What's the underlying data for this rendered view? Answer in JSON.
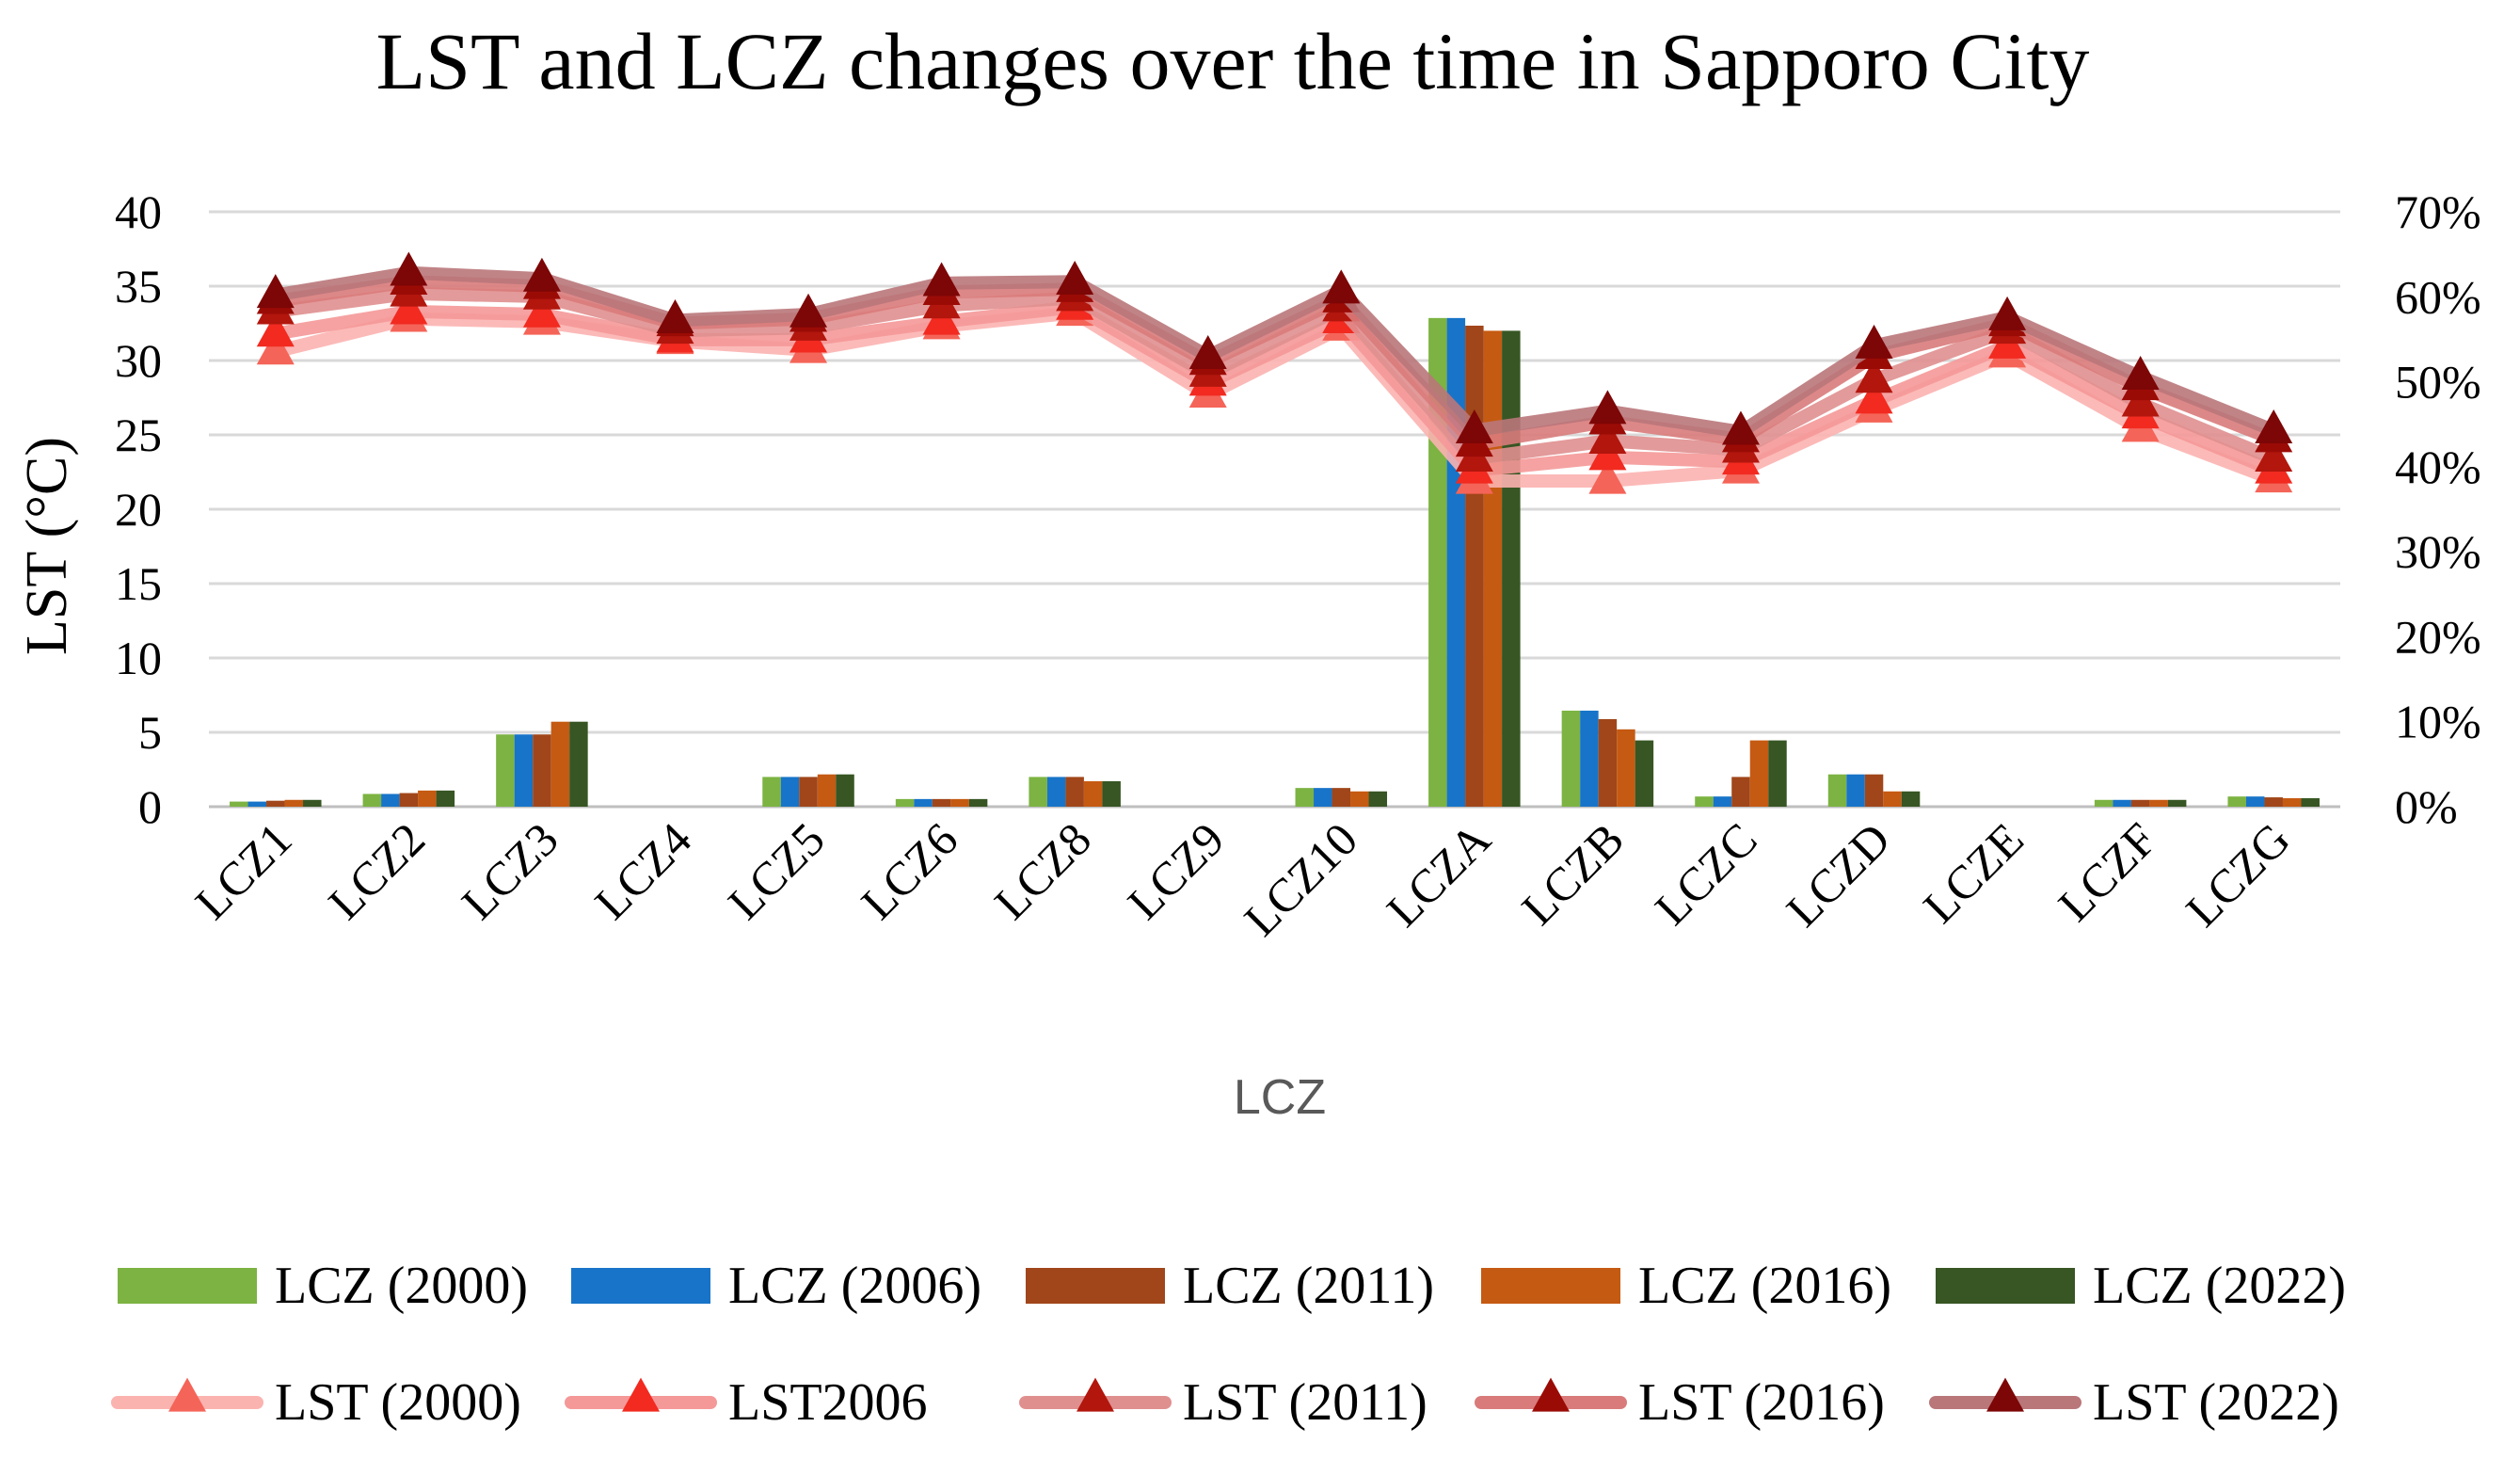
{
  "chart_data": {
    "type": "bar+line",
    "title": "LST and LCZ changes over the time in Sapporo City",
    "xlabel": "LCZ",
    "ylabel": "LST (°C)",
    "ylim": [
      0,
      40
    ],
    "yticks": [
      "0",
      "5",
      "10",
      "15",
      "20",
      "25",
      "30",
      "35",
      "40"
    ],
    "y2lim": [
      0,
      70
    ],
    "y2ticks": [
      "0%",
      "10%",
      "20%",
      "30%",
      "40%",
      "50%",
      "60%",
      "70%"
    ],
    "categories": [
      "LCZ1",
      "LCZ2",
      "LCZ3",
      "LCZ4",
      "LCZ5",
      "LCZ6",
      "LCZ8",
      "LCZ9",
      "LCZ10",
      "LCZA",
      "LCZB",
      "LCZC",
      "LCZD",
      "LCZE",
      "LCZF",
      "LCZG"
    ],
    "grid": true,
    "legend_position": "bottom",
    "bar_series": [
      {
        "name": "LCZ (2000)",
        "color": "#7cb342",
        "values": [
          0.6,
          1.5,
          8.5,
          0,
          3.5,
          0.9,
          3.5,
          0,
          2.2,
          57.5,
          11.3,
          1.2,
          3.8,
          0,
          0.8,
          1.2
        ]
      },
      {
        "name": "LCZ (2006)",
        "color": "#1874c8",
        "values": [
          0.6,
          1.5,
          8.5,
          0,
          3.5,
          0.9,
          3.5,
          0,
          2.2,
          57.5,
          11.3,
          1.2,
          3.8,
          0,
          0.8,
          1.2
        ]
      },
      {
        "name": "LCZ (2011)",
        "color": "#a0461a",
        "values": [
          0.7,
          1.6,
          8.5,
          0,
          3.5,
          0.9,
          3.5,
          0,
          2.2,
          56.6,
          10.3,
          3.5,
          3.8,
          0,
          0.8,
          1.1
        ]
      },
      {
        "name": "LCZ (2016)",
        "color": "#c55a12",
        "values": [
          0.8,
          1.9,
          10.0,
          0,
          3.8,
          0.9,
          3.0,
          0,
          1.8,
          56.0,
          9.1,
          7.8,
          1.8,
          0,
          0.8,
          1.0
        ]
      },
      {
        "name": "LCZ (2022)",
        "color": "#375623",
        "values": [
          0.8,
          1.9,
          10.0,
          0,
          3.8,
          0.9,
          3.0,
          0,
          1.8,
          56.0,
          7.8,
          7.8,
          1.8,
          0,
          0.8,
          1.0
        ]
      }
    ],
    "line_series": [
      {
        "name": "LST (2000)",
        "color": "#fbb3b0",
        "marker": "#f56458",
        "values": [
          30.6,
          32.8,
          32.6,
          31.3,
          30.7,
          32.3,
          33.2,
          27.7,
          32.2,
          21.9,
          21.9,
          22.6,
          26.7,
          30.4,
          25.4,
          22.0
        ]
      },
      {
        "name": "LST2006",
        "color": "#f59898",
        "marker": "#f22a20",
        "values": [
          31.8,
          33.3,
          33.1,
          31.4,
          31.4,
          32.6,
          33.6,
          28.5,
          32.7,
          22.6,
          23.5,
          23.2,
          27.3,
          31.0,
          26.3,
          22.6
        ]
      },
      {
        "name": "LST (2011)",
        "color": "#e08f8f",
        "marker": "#b2160d",
        "values": [
          33.3,
          34.5,
          34.3,
          32.0,
          32.2,
          33.7,
          34.2,
          29.1,
          33.5,
          23.4,
          24.6,
          24.0,
          28.7,
          32.0,
          27.1,
          23.4
        ]
      },
      {
        "name": "LST (2016)",
        "color": "#d97b7b",
        "marker": "#9b0b06",
        "values": [
          34.0,
          35.3,
          35.0,
          32.5,
          32.8,
          34.6,
          34.8,
          29.9,
          34.1,
          24.4,
          25.9,
          24.7,
          30.3,
          32.5,
          28.2,
          24.7
        ]
      },
      {
        "name": "LST (2022)",
        "color": "#b9777a",
        "marker": "#7d0606",
        "values": [
          34.4,
          35.9,
          35.5,
          32.7,
          33.1,
          35.2,
          35.3,
          30.3,
          34.7,
          25.3,
          26.6,
          25.2,
          31.0,
          32.9,
          28.9,
          25.3
        ]
      }
    ]
  }
}
